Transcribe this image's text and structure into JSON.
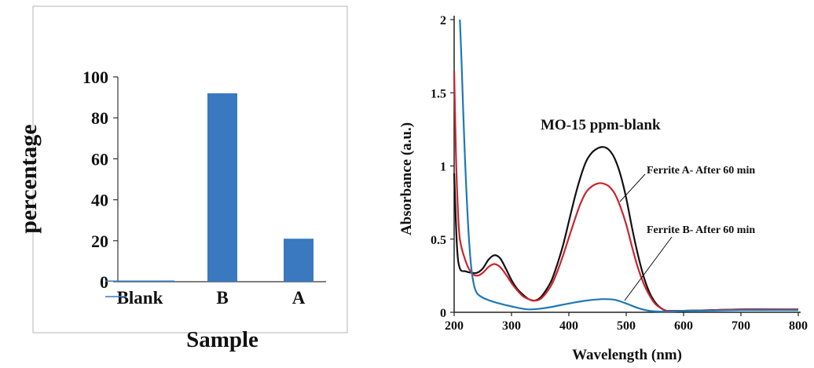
{
  "chart_data": [
    {
      "type": "bar",
      "categories": [
        "Blank",
        "B",
        "A"
      ],
      "values": [
        0.5,
        92,
        21
      ],
      "ylabel": "percentage",
      "xlabel": "Sample",
      "ylim": [
        0,
        100
      ],
      "yticks": [
        0,
        20,
        40,
        60,
        80,
        100
      ],
      "grid": false,
      "colors": {
        "bar": "#3a78c0"
      }
    },
    {
      "type": "line",
      "xlabel": "Wavelength (nm)",
      "ylabel": "Absorbance (a.u.)",
      "xlim": [
        200,
        800
      ],
      "ylim": [
        0,
        2
      ],
      "xticks": [
        200,
        300,
        400,
        500,
        600,
        700,
        800
      ],
      "yticks": [
        "0",
        "0.5",
        "1",
        "1.5",
        "2"
      ],
      "yticks_values": [
        0,
        0.5,
        1,
        1.5,
        2
      ],
      "grid": false,
      "annotations": [
        {
          "text": "MO-15 ppm-blank"
        },
        {
          "text": "Ferrite A- After 60 min"
        },
        {
          "text": "Ferrite B- After 60 min"
        }
      ],
      "series": [
        {
          "color": "#111111",
          "x": [
            200,
            205,
            210,
            220,
            230,
            240,
            250,
            260,
            270,
            280,
            290,
            300,
            310,
            320,
            330,
            340,
            350,
            360,
            370,
            380,
            390,
            400,
            410,
            420,
            430,
            440,
            450,
            460,
            470,
            480,
            490,
            500,
            510,
            520,
            530,
            540,
            550,
            560,
            570,
            580,
            600,
            650,
            700,
            750,
            800
          ],
          "y": [
            0.95,
            0.45,
            0.3,
            0.28,
            0.27,
            0.27,
            0.3,
            0.36,
            0.39,
            0.37,
            0.3,
            0.22,
            0.16,
            0.12,
            0.09,
            0.08,
            0.1,
            0.15,
            0.22,
            0.33,
            0.46,
            0.62,
            0.78,
            0.92,
            1.03,
            1.09,
            1.12,
            1.13,
            1.11,
            1.05,
            0.94,
            0.78,
            0.58,
            0.4,
            0.25,
            0.14,
            0.07,
            0.03,
            0.01,
            0.01,
            0.01,
            0.015,
            0.02,
            0.02,
            0.02
          ]
        },
        {
          "color": "#c8252c",
          "x": [
            200,
            203,
            206,
            210,
            220,
            230,
            240,
            250,
            260,
            270,
            280,
            290,
            300,
            310,
            320,
            330,
            340,
            350,
            360,
            370,
            380,
            390,
            400,
            410,
            420,
            430,
            440,
            450,
            460,
            470,
            480,
            490,
            500,
            510,
            520,
            530,
            540,
            550,
            560,
            570,
            580,
            600,
            650,
            700,
            750,
            800
          ],
          "y": [
            1.65,
            1.1,
            0.75,
            0.5,
            0.35,
            0.27,
            0.25,
            0.27,
            0.31,
            0.33,
            0.31,
            0.26,
            0.2,
            0.15,
            0.11,
            0.09,
            0.08,
            0.09,
            0.13,
            0.19,
            0.28,
            0.39,
            0.51,
            0.63,
            0.74,
            0.82,
            0.86,
            0.88,
            0.88,
            0.86,
            0.81,
            0.72,
            0.6,
            0.45,
            0.31,
            0.2,
            0.12,
            0.06,
            0.03,
            0.01,
            0.01,
            0.01,
            0.015,
            0.02,
            0.02,
            0.02
          ]
        },
        {
          "color": "#1f78b4",
          "x": [
            210,
            213,
            216,
            220,
            225,
            230,
            235,
            240,
            250,
            270,
            300,
            330,
            360,
            400,
            430,
            460,
            480,
            500,
            520,
            540,
            560,
            580,
            600,
            650,
            700,
            750,
            800
          ],
          "y": [
            2.0,
            1.7,
            1.35,
            0.95,
            0.55,
            0.3,
            0.18,
            0.13,
            0.1,
            0.07,
            0.04,
            0.02,
            0.03,
            0.06,
            0.08,
            0.09,
            0.085,
            0.06,
            0.03,
            0.01,
            0.005,
            0.005,
            0.01,
            0.012,
            0.015,
            0.015,
            0.015
          ]
        }
      ]
    }
  ]
}
